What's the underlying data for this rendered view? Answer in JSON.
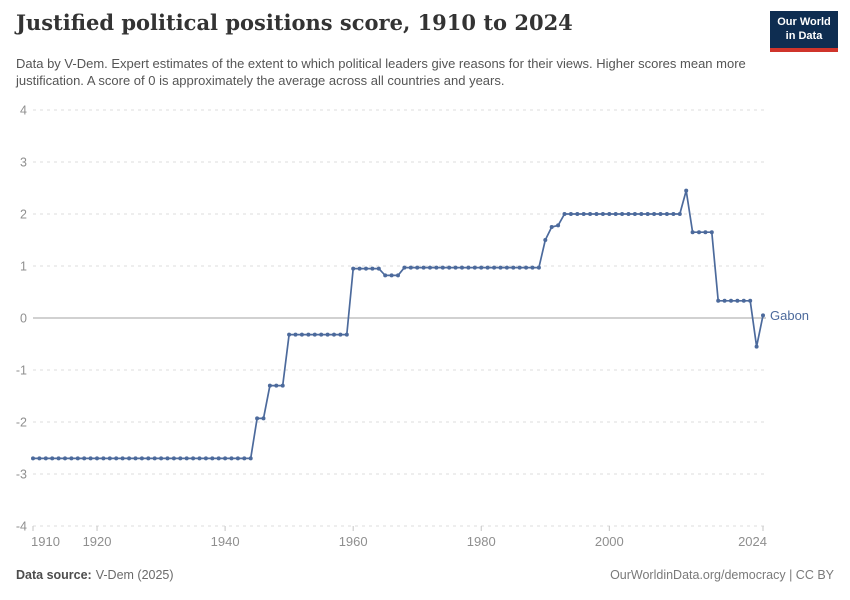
{
  "header": {
    "title": "Justified political positions score, 1910 to 2024",
    "subtitle": "Data by V-Dem. Expert estimates of the extent to which political leaders give reasons for their views. Higher scores mean more justification. A score of 0 is approximately the average across all countries and years.",
    "logo": {
      "line1": "Our World",
      "line2": "in Data"
    }
  },
  "colors": {
    "line": "#4c6a9c",
    "grid": "#dcdcdc",
    "zero_line": "#a3a3a3",
    "axis_text": "#8f8f8f",
    "tick": "#c6c6c6",
    "logo_bg": "#0e2d51",
    "logo_accent": "#cf342b"
  },
  "chart_data": {
    "type": "line",
    "title": "Justified political positions score, 1910 to 2024",
    "entity": "Gabon",
    "xlabel": "",
    "ylabel": "",
    "xlim": [
      1910,
      2024
    ],
    "ylim": [
      -4,
      4
    ],
    "xticks": [
      1910,
      1920,
      1940,
      1960,
      1980,
      2000,
      2024
    ],
    "yticks": [
      4,
      3,
      2,
      1,
      0,
      -1,
      -2,
      -3,
      -4
    ],
    "grid": "horizontal-dashed",
    "zero_line": true,
    "legend_position": "end-of-line-label",
    "series": [
      {
        "name": "Gabon",
        "color": "#4c6a9c",
        "start_year": 1910,
        "values": [
          -2.7,
          -2.7,
          -2.7,
          -2.7,
          -2.7,
          -2.7,
          -2.7,
          -2.7,
          -2.7,
          -2.7,
          -2.7,
          -2.7,
          -2.7,
          -2.7,
          -2.7,
          -2.7,
          -2.7,
          -2.7,
          -2.7,
          -2.7,
          -2.7,
          -2.7,
          -2.7,
          -2.7,
          -2.7,
          -2.7,
          -2.7,
          -2.7,
          -2.7,
          -2.7,
          -2.7,
          -2.7,
          -2.7,
          -2.7,
          -2.7,
          -1.93,
          -1.93,
          -1.3,
          -1.3,
          -1.3,
          -0.32,
          -0.32,
          -0.32,
          -0.32,
          -0.32,
          -0.32,
          -0.32,
          -0.32,
          -0.32,
          -0.32,
          0.95,
          0.95,
          0.95,
          0.95,
          0.95,
          0.82,
          0.82,
          0.82,
          0.97,
          0.97,
          0.97,
          0.97,
          0.97,
          0.97,
          0.97,
          0.97,
          0.97,
          0.97,
          0.97,
          0.97,
          0.97,
          0.97,
          0.97,
          0.97,
          0.97,
          0.97,
          0.97,
          0.97,
          0.97,
          0.97,
          1.5,
          1.75,
          1.78,
          2.0,
          2.0,
          2.0,
          2.0,
          2.0,
          2.0,
          2.0,
          2.0,
          2.0,
          2.0,
          2.0,
          2.0,
          2.0,
          2.0,
          2.0,
          2.0,
          2.0,
          2.0,
          2.0,
          2.45,
          1.65,
          1.65,
          1.65,
          1.65,
          0.33,
          0.33,
          0.33,
          0.33,
          0.33,
          0.33,
          -0.55,
          0.05
        ]
      }
    ]
  },
  "footer": {
    "source_label": "Data source:",
    "source_value": "V-Dem (2025)",
    "credit": "OurWorldinData.org/democracy | CC BY"
  }
}
